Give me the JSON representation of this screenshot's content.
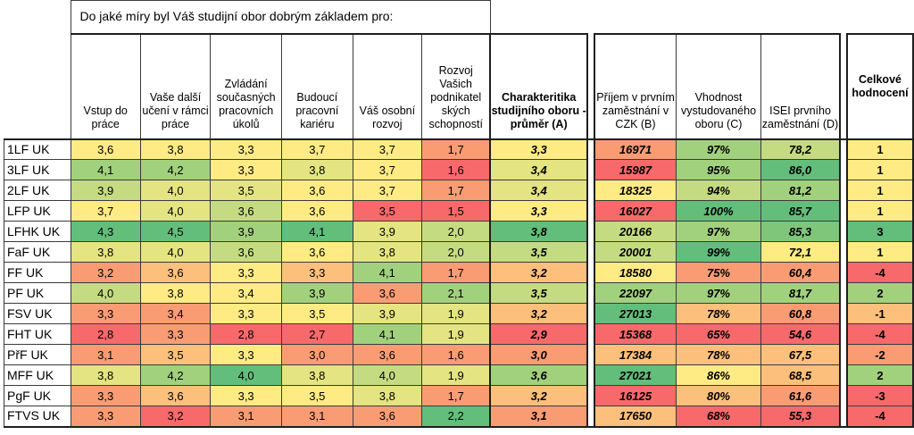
{
  "colors": {
    "red": "#f8696b",
    "orange": "#f99c74",
    "lorange": "#fcc07c",
    "yellow": "#ffeb84",
    "lyellow": "#e4e482",
    "lgreen": "#c5db81",
    "green": "#a2d17e",
    "dgreen": "#7fc67b",
    "xgreen": "#63be7b"
  },
  "left": {
    "question": "Do jaké míry byl Váš studijní obor dobrým základem pro:",
    "headers": [
      "Vstup do práce",
      "Vaše další učení v rámci práce",
      "Zvládání současných pracovních úkolů",
      "Budoucí pracovní kariéru",
      "Váš osobní rozvoj",
      "Rozvoj Vašich podnikatel ských schopností"
    ],
    "avg_header": "Charakteritika studijního oboru - průměr (A)"
  },
  "right": {
    "headers": [
      "Příjem v prvním zaměstnání v CZK (B)",
      "Vhodnost vystudovaného oboru (C)",
      "ISEI prvního zaměstnání (D)"
    ],
    "overall_header": "Celkové hodnocení"
  },
  "rows": [
    {
      "name": "1LF UK",
      "v": [
        "3,6",
        "3,8",
        "3,3",
        "3,7",
        "3,7",
        "1,7"
      ],
      "c": [
        "yellow",
        "yellow",
        "yellow",
        "yellow",
        "yellow",
        "orange"
      ],
      "avg": "3,3",
      "avgc": "yellow",
      "income": "16971",
      "incomec": "orange",
      "fit": "97%",
      "fitc": "green",
      "isei": "78,2",
      "iseic": "lgreen",
      "overall": "1",
      "overallc": "yellow"
    },
    {
      "name": "3LF UK",
      "v": [
        "4,1",
        "4,2",
        "3,3",
        "3,8",
        "3,7",
        "1,6"
      ],
      "c": [
        "green",
        "green",
        "yellow",
        "lyellow",
        "yellow",
        "red"
      ],
      "avg": "3,4",
      "avgc": "lyellow",
      "income": "15987",
      "incomec": "red",
      "fit": "95%",
      "fitc": "green",
      "isei": "86,0",
      "iseic": "xgreen",
      "overall": "1",
      "overallc": "yellow"
    },
    {
      "name": "2LF UK",
      "v": [
        "3,9",
        "4,0",
        "3,5",
        "3,6",
        "3,7",
        "1,7"
      ],
      "c": [
        "lgreen",
        "lyellow",
        "lyellow",
        "yellow",
        "yellow",
        "orange"
      ],
      "avg": "3,4",
      "avgc": "lyellow",
      "income": "18325",
      "incomec": "yellow",
      "fit": "94%",
      "fitc": "lgreen",
      "isei": "81,2",
      "iseic": "green",
      "overall": "1",
      "overallc": "yellow"
    },
    {
      "name": "LFP UK",
      "v": [
        "3,7",
        "4,0",
        "3,6",
        "3,6",
        "3,5",
        "1,5"
      ],
      "c": [
        "yellow",
        "lyellow",
        "lgreen",
        "yellow",
        "red",
        "red"
      ],
      "avg": "3,3",
      "avgc": "yellow",
      "income": "16027",
      "incomec": "red",
      "fit": "100%",
      "fitc": "xgreen",
      "isei": "85,7",
      "iseic": "xgreen",
      "overall": "1",
      "overallc": "yellow"
    },
    {
      "name": "LFHK UK",
      "v": [
        "4,3",
        "4,5",
        "3,9",
        "4,1",
        "3,9",
        "2,0"
      ],
      "c": [
        "xgreen",
        "xgreen",
        "green",
        "xgreen",
        "lyellow",
        "lgreen"
      ],
      "avg": "3,8",
      "avgc": "xgreen",
      "income": "20166",
      "incomec": "lgreen",
      "fit": "97%",
      "fitc": "green",
      "isei": "85,3",
      "iseic": "dgreen",
      "overall": "3",
      "overallc": "xgreen"
    },
    {
      "name": "FaF UK",
      "v": [
        "3,8",
        "4,0",
        "3,6",
        "3,6",
        "3,8",
        "2,0"
      ],
      "c": [
        "lyellow",
        "lyellow",
        "lgreen",
        "yellow",
        "lyellow",
        "lgreen"
      ],
      "avg": "3,5",
      "avgc": "lgreen",
      "income": "20001",
      "incomec": "lgreen",
      "fit": "99%",
      "fitc": "xgreen",
      "isei": "72,1",
      "iseic": "yellow",
      "overall": "1",
      "overallc": "yellow"
    },
    {
      "name": "FF UK",
      "v": [
        "3,2",
        "3,6",
        "3,3",
        "3,3",
        "4,1",
        "1,7"
      ],
      "c": [
        "orange",
        "lorange",
        "yellow",
        "lorange",
        "green",
        "orange"
      ],
      "avg": "3,2",
      "avgc": "lorange",
      "income": "18580",
      "incomec": "yellow",
      "fit": "75%",
      "fitc": "orange",
      "isei": "60,4",
      "iseic": "orange",
      "overall": "-4",
      "overallc": "red"
    },
    {
      "name": "PF UK",
      "v": [
        "4,0",
        "3,8",
        "3,4",
        "3,9",
        "3,6",
        "2,1"
      ],
      "c": [
        "lgreen",
        "yellow",
        "yellow",
        "green",
        "orange",
        "green"
      ],
      "avg": "3,5",
      "avgc": "lgreen",
      "income": "22097",
      "incomec": "green",
      "fit": "97%",
      "fitc": "green",
      "isei": "81,7",
      "iseic": "green",
      "overall": "2",
      "overallc": "green"
    },
    {
      "name": "FSV UK",
      "v": [
        "3,3",
        "3,4",
        "3,3",
        "3,5",
        "3,9",
        "1,9"
      ],
      "c": [
        "orange",
        "orange",
        "yellow",
        "yellow",
        "lyellow",
        "lyellow"
      ],
      "avg": "3,2",
      "avgc": "lorange",
      "income": "27013",
      "incomec": "xgreen",
      "fit": "78%",
      "fitc": "lorange",
      "isei": "60,8",
      "iseic": "orange",
      "overall": "-1",
      "overallc": "lorange"
    },
    {
      "name": "FHT UK",
      "v": [
        "2,8",
        "3,3",
        "2,8",
        "2,7",
        "4,1",
        "1,9"
      ],
      "c": [
        "red",
        "orange",
        "red",
        "red",
        "green",
        "lyellow"
      ],
      "avg": "2,9",
      "avgc": "red",
      "income": "15368",
      "incomec": "red",
      "fit": "65%",
      "fitc": "red",
      "isei": "54,6",
      "iseic": "red",
      "overall": "-4",
      "overallc": "red"
    },
    {
      "name": "PřF UK",
      "v": [
        "3,1",
        "3,5",
        "3,3",
        "3,0",
        "3,6",
        "1,6"
      ],
      "c": [
        "orange",
        "lorange",
        "yellow",
        "orange",
        "orange",
        "orange"
      ],
      "avg": "3,0",
      "avgc": "orange",
      "income": "17384",
      "incomec": "lorange",
      "fit": "78%",
      "fitc": "lorange",
      "isei": "67,5",
      "iseic": "lorange",
      "overall": "-2",
      "overallc": "orange"
    },
    {
      "name": "MFF UK",
      "v": [
        "3,8",
        "4,2",
        "4,0",
        "3,8",
        "4,0",
        "1,9"
      ],
      "c": [
        "lyellow",
        "green",
        "xgreen",
        "lyellow",
        "lgreen",
        "lyellow"
      ],
      "avg": "3,6",
      "avgc": "green",
      "income": "27021",
      "incomec": "xgreen",
      "fit": "86%",
      "fitc": "yellow",
      "isei": "68,5",
      "iseic": "lorange",
      "overall": "2",
      "overallc": "green"
    },
    {
      "name": "PgF UK",
      "v": [
        "3,3",
        "3,6",
        "3,3",
        "3,5",
        "3,8",
        "1,7"
      ],
      "c": [
        "orange",
        "lorange",
        "yellow",
        "yellow",
        "lyellow",
        "orange"
      ],
      "avg": "3,2",
      "avgc": "lorange",
      "income": "16125",
      "incomec": "red",
      "fit": "80%",
      "fitc": "lorange",
      "isei": "61,6",
      "iseic": "orange",
      "overall": "-3",
      "overallc": "red"
    },
    {
      "name": "FTVS UK",
      "v": [
        "3,3",
        "3,2",
        "3,1",
        "3,1",
        "3,6",
        "2,2"
      ],
      "c": [
        "orange",
        "red",
        "orange",
        "orange",
        "orange",
        "xgreen"
      ],
      "avg": "3,1",
      "avgc": "orange",
      "income": "17650",
      "incomec": "lorange",
      "fit": "68%",
      "fitc": "red",
      "isei": "55,3",
      "iseic": "red",
      "overall": "-4",
      "overallc": "red"
    }
  ]
}
